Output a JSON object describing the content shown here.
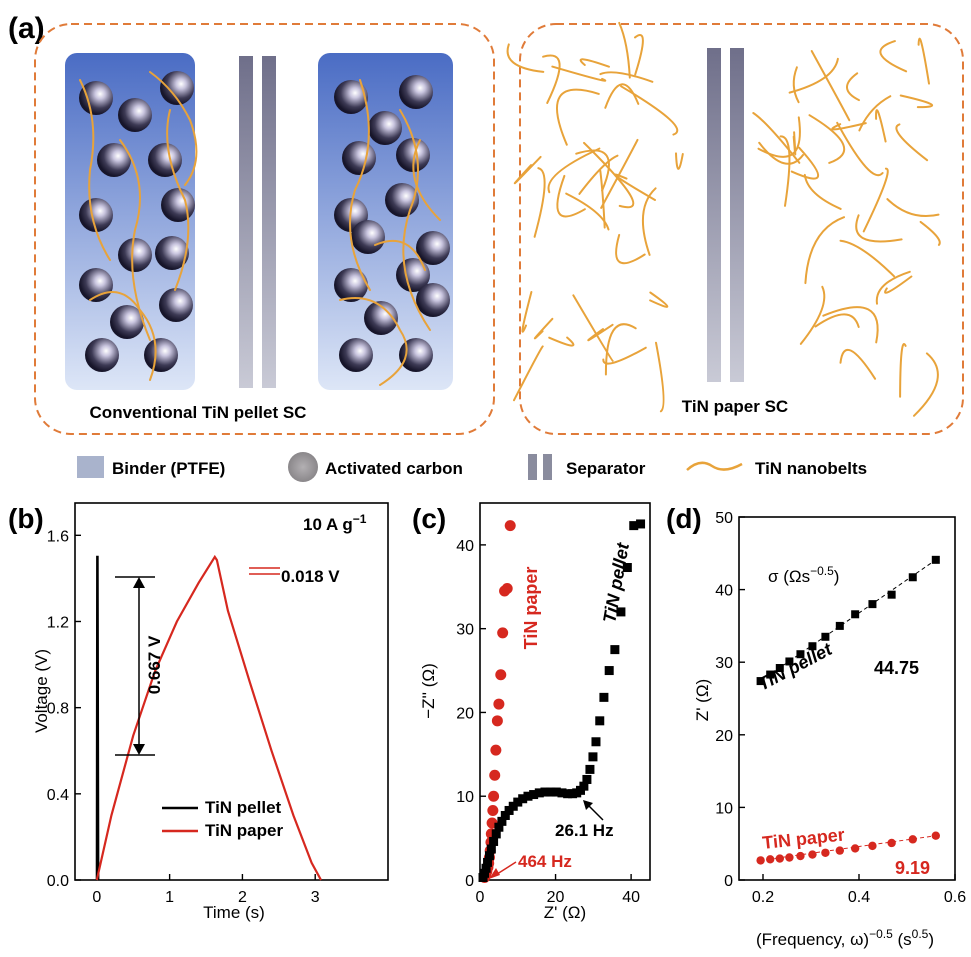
{
  "panel_a": {
    "label": "(a)",
    "left_caption": "Conventional TiN pellet SC",
    "right_caption": "TiN paper SC",
    "legend": [
      {
        "key": "binder",
        "label": "Binder (PTFE)"
      },
      {
        "key": "carbon",
        "label": "Activated carbon"
      },
      {
        "key": "separator",
        "label": "Separator"
      },
      {
        "key": "nanobelt",
        "label": "TiN nanobelts"
      }
    ]
  },
  "chart_data": [
    {
      "panel": "(b)",
      "type": "line",
      "xlabel": "Time (s)",
      "ylabel": "Voltage (V)",
      "xlim": [
        -0.3,
        4.0
      ],
      "ylim": [
        0,
        1.75
      ],
      "xticks": [
        0,
        1,
        2,
        3
      ],
      "yticks": [
        0.0,
        0.4,
        0.8,
        1.2,
        1.6
      ],
      "ytick_labels": [
        "0.0",
        "0.4",
        "0.8",
        "1.2",
        "1.6"
      ],
      "series": [
        {
          "name": "TiN pellet",
          "color": "#000000",
          "x": [
            0,
            0.005,
            0.01,
            0.02
          ],
          "y": [
            0,
            1.5,
            1.5,
            0
          ]
        },
        {
          "name": "TiN paper",
          "color": "#d6281f",
          "x": [
            0,
            0.2,
            0.5,
            0.8,
            1.1,
            1.4,
            1.62,
            1.65,
            1.8,
            2.1,
            2.4,
            2.7,
            2.95,
            3.08
          ],
          "y": [
            0,
            0.3,
            0.67,
            0.97,
            1.2,
            1.38,
            1.5,
            1.485,
            1.25,
            0.92,
            0.6,
            0.3,
            0.08,
            0
          ]
        }
      ],
      "annotations": {
        "rate": "10 A g",
        "rate_sup": "−1",
        "ir_drop_paper": "0.018 V",
        "ir_drop_pellet": "0.667 V"
      }
    },
    {
      "panel": "(c)",
      "type": "scatter",
      "xlabel": "Z' (Ω)",
      "ylabel": "−Z'' (Ω)",
      "xlim": [
        0,
        45
      ],
      "ylim": [
        0,
        45
      ],
      "xticks": [
        0,
        20,
        40
      ],
      "yticks": [
        0,
        10,
        20,
        30,
        40
      ],
      "series": [
        {
          "name": "TiN paper",
          "color": "#d6281f",
          "x": [
            1.2,
            1.5,
            1.8,
            2.1,
            2.3,
            2.5,
            2.7,
            2.9,
            3.0,
            3.2,
            3.4,
            3.6,
            3.9,
            4.2,
            4.6,
            5.0,
            5.5,
            6.0,
            6.5,
            7.2,
            8.0
          ],
          "y": [
            0.3,
            0.6,
            1.0,
            1.5,
            2.0,
            2.7,
            3.5,
            4.5,
            5.5,
            6.8,
            8.3,
            10.0,
            12.5,
            15.5,
            19.0,
            21.0,
            24.5,
            29.5,
            34.5,
            34.8,
            42.3
          ]
        },
        {
          "name": "TiN pellet",
          "color": "#000000",
          "x": [
            0.8,
            1.2,
            1.6,
            2.0,
            2.5,
            3.0,
            3.6,
            4.3,
            5.0,
            5.8,
            6.7,
            7.7,
            8.8,
            10,
            11.3,
            12.7,
            14.2,
            15.7,
            17.2,
            18.7,
            20.2,
            21.7,
            23.2,
            24.5,
            25.6,
            26.6,
            27.5,
            28.3,
            29.1,
            29.9,
            30.7,
            31.7,
            32.8,
            34.2,
            35.7,
            37.3,
            39.0,
            40.7,
            42.5
          ],
          "y": [
            0.3,
            0.8,
            1.4,
            2.1,
            2.9,
            3.7,
            4.6,
            5.5,
            6.3,
            7.0,
            7.7,
            8.3,
            8.8,
            9.3,
            9.7,
            10.0,
            10.2,
            10.4,
            10.5,
            10.5,
            10.5,
            10.4,
            10.3,
            10.3,
            10.4,
            10.7,
            11.2,
            12.0,
            13.2,
            14.7,
            16.5,
            19.0,
            21.8,
            25.0,
            27.5,
            32.0,
            37.3,
            42.3,
            42.5
          ]
        }
      ],
      "annotations": {
        "paper_freq": "464 Hz",
        "pellet_freq": "26.1 Hz"
      }
    },
    {
      "panel": "(d)",
      "type": "scatter",
      "xlabel": "(Frequency, ω)",
      "xlabel_sup": "−0.5",
      "xlabel_unit": " (s",
      "xlabel_unit_sup": "0.5",
      "xlabel_close": ")",
      "ylabel": "Z' (Ω)",
      "xlim": [
        0.15,
        0.6
      ],
      "ylim": [
        0,
        50
      ],
      "xticks": [
        0.2,
        0.4,
        0.6
      ],
      "yticks": [
        0,
        10,
        20,
        30,
        40,
        50
      ],
      "sigma_title": "σ (Ωs",
      "sigma_sup": "−0.5",
      "sigma_close": ")",
      "series": [
        {
          "name": "TiN pellet",
          "color": "#000000",
          "sigma": "44.75",
          "x": [
            0.195,
            0.215,
            0.235,
            0.255,
            0.278,
            0.303,
            0.33,
            0.36,
            0.392,
            0.428,
            0.468,
            0.512,
            0.56
          ],
          "y": [
            27.4,
            28.3,
            29.2,
            30.1,
            31.1,
            32.2,
            33.5,
            35.0,
            36.6,
            38.0,
            39.3,
            41.7,
            44.1
          ]
        },
        {
          "name": "TiN paper",
          "color": "#d6281f",
          "sigma": "9.19",
          "x": [
            0.195,
            0.215,
            0.235,
            0.255,
            0.278,
            0.303,
            0.33,
            0.36,
            0.392,
            0.428,
            0.468,
            0.512,
            0.56
          ],
          "y": [
            2.7,
            2.85,
            2.95,
            3.1,
            3.3,
            3.5,
            3.75,
            4.05,
            4.35,
            4.7,
            5.1,
            5.6,
            6.1
          ]
        }
      ]
    }
  ]
}
